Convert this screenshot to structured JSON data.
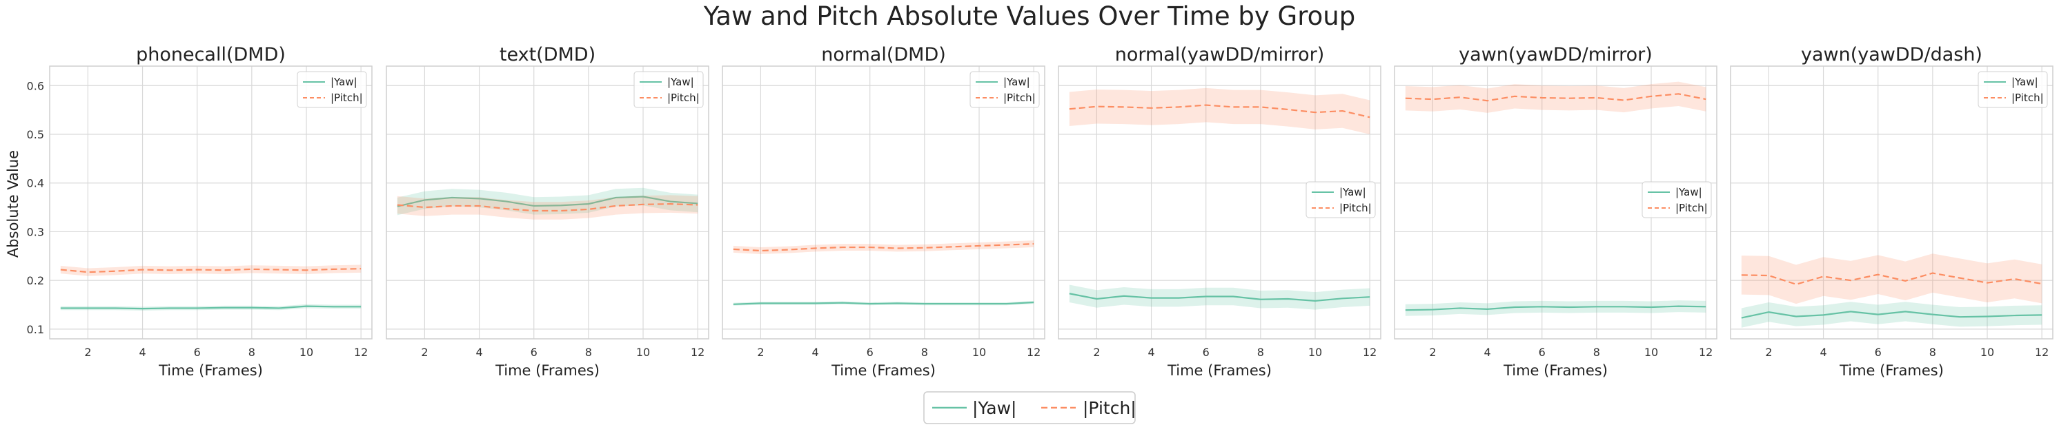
{
  "title": "Yaw and Pitch Absolute Values Over Time by Group",
  "colors": {
    "yaw": "#66c2a5",
    "pitch": "#fc8d62"
  },
  "chart_data": {
    "type": "line",
    "xlabel": "Time (Frames)",
    "ylabel": "Absolute Value",
    "xlim": [
      0.6,
      12.4
    ],
    "ylim": [
      0.08,
      0.64
    ],
    "x_ticks": [
      2,
      4,
      6,
      8,
      10,
      12
    ],
    "y_ticks": [
      0.1,
      0.2,
      0.3,
      0.4,
      0.5,
      0.6
    ],
    "x": [
      1,
      2,
      3,
      4,
      5,
      6,
      7,
      8,
      9,
      10,
      11,
      12
    ],
    "legend_labels": [
      "|Yaw|",
      "|Pitch|"
    ],
    "figure_legend": {
      "placement": "bottom-center",
      "labels": [
        "|Yaw|",
        "|Pitch|"
      ]
    },
    "panels": [
      {
        "title": "phonecall(DMD)",
        "legend_placement": "upper-right",
        "series": [
          {
            "name": "|Yaw|",
            "values": [
              0.143,
              0.143,
              0.143,
              0.142,
              0.143,
              0.143,
              0.144,
              0.144,
              0.143,
              0.147,
              0.146,
              0.146
            ],
            "band": 0.004
          },
          {
            "name": "|Pitch|",
            "values": [
              0.222,
              0.217,
              0.219,
              0.222,
              0.221,
              0.222,
              0.221,
              0.223,
              0.222,
              0.221,
              0.223,
              0.224
            ],
            "band": 0.008
          }
        ]
      },
      {
        "title": "text(DMD)",
        "legend_placement": "upper-right",
        "series": [
          {
            "name": "|Yaw|",
            "values": [
              0.352,
              0.365,
              0.37,
              0.368,
              0.362,
              0.353,
              0.354,
              0.357,
              0.37,
              0.372,
              0.362,
              0.358
            ],
            "band": 0.018
          },
          {
            "name": "|Pitch|",
            "values": [
              0.355,
              0.35,
              0.353,
              0.353,
              0.347,
              0.343,
              0.343,
              0.346,
              0.353,
              0.356,
              0.357,
              0.355
            ],
            "band": 0.018
          }
        ]
      },
      {
        "title": "normal(DMD)",
        "legend_placement": "upper-right",
        "series": [
          {
            "name": "|Yaw|",
            "values": [
              0.151,
              0.153,
              0.153,
              0.153,
              0.154,
              0.152,
              0.153,
              0.152,
              0.152,
              0.152,
              0.152,
              0.155
            ],
            "band": 0.003
          },
          {
            "name": "|Pitch|",
            "values": [
              0.264,
              0.261,
              0.263,
              0.266,
              0.268,
              0.268,
              0.266,
              0.267,
              0.269,
              0.271,
              0.273,
              0.275
            ],
            "band": 0.007
          }
        ]
      },
      {
        "title": "normal(yawDD/mirror)",
        "legend_placement": "center-right",
        "series": [
          {
            "name": "|Yaw|",
            "values": [
              0.173,
              0.162,
              0.168,
              0.164,
              0.164,
              0.167,
              0.167,
              0.161,
              0.162,
              0.158,
              0.163,
              0.166
            ],
            "band": 0.018
          },
          {
            "name": "|Pitch|",
            "values": [
              0.552,
              0.557,
              0.556,
              0.554,
              0.556,
              0.56,
              0.556,
              0.556,
              0.551,
              0.545,
              0.548,
              0.535
            ],
            "band": 0.035
          }
        ]
      },
      {
        "title": "yawn(yawDD/mirror)",
        "legend_placement": "center-right",
        "series": [
          {
            "name": "|Yaw|",
            "values": [
              0.139,
              0.14,
              0.143,
              0.141,
              0.145,
              0.146,
              0.145,
              0.146,
              0.146,
              0.145,
              0.147,
              0.146
            ],
            "band": 0.012
          },
          {
            "name": "|Pitch|",
            "values": [
              0.574,
              0.572,
              0.576,
              0.569,
              0.578,
              0.575,
              0.574,
              0.575,
              0.57,
              0.578,
              0.583,
              0.572
            ],
            "band": 0.025
          }
        ]
      },
      {
        "title": "yawn(yawDD/dash)",
        "legend_placement": "upper-right",
        "series": [
          {
            "name": "|Yaw|",
            "values": [
              0.123,
              0.135,
              0.126,
              0.129,
              0.136,
              0.13,
              0.136,
              0.13,
              0.125,
              0.126,
              0.128,
              0.129
            ],
            "band": 0.02
          },
          {
            "name": "|Pitch|",
            "values": [
              0.211,
              0.21,
              0.192,
              0.208,
              0.2,
              0.212,
              0.199,
              0.215,
              0.205,
              0.195,
              0.203,
              0.193
            ],
            "band": 0.04
          }
        ]
      }
    ]
  }
}
